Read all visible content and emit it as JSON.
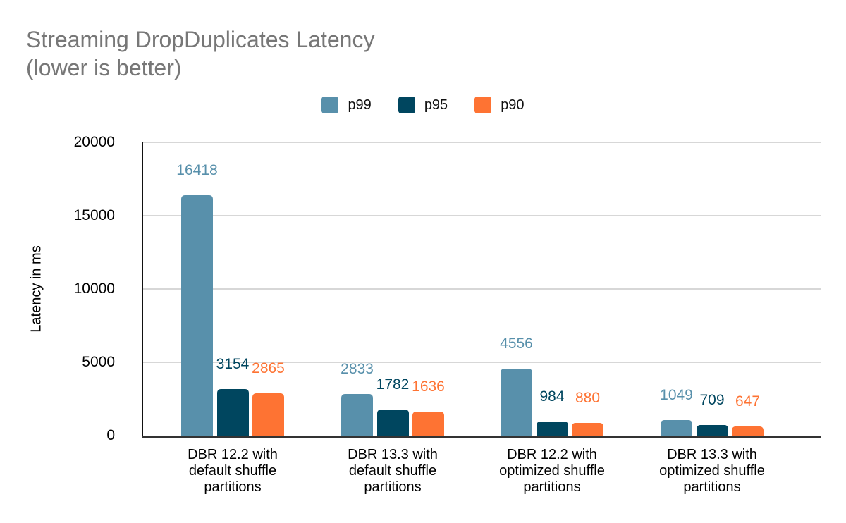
{
  "title": {
    "line1": "Streaming DropDuplicates Latency",
    "line2": "(lower is better)"
  },
  "y_axis": {
    "label": "Latency in ms",
    "ticks": [
      "20000",
      "15000",
      "10000",
      "5000",
      "0"
    ]
  },
  "chart_data": {
    "type": "bar",
    "title": "Streaming DropDuplicates Latency (lower is better)",
    "categories": [
      "DBR 12.2 with default shuffle partitions",
      "DBR 13.3 with default shuffle partitions",
      "DBR 12.2 with optimized shuffle partitions",
      "DBR 13.3 with optimized shuffle partitions"
    ],
    "series": [
      {
        "name": "p99",
        "color": "#5890ab",
        "values": [
          16418,
          2833,
          4556,
          1049
        ]
      },
      {
        "name": "p95",
        "color": "#00465f",
        "values": [
          3154,
          1782,
          984,
          709
        ]
      },
      {
        "name": "p90",
        "color": "#fe7333",
        "values": [
          2865,
          1636,
          880,
          647
        ]
      }
    ],
    "xlabel": "",
    "ylabel": "Latency in ms",
    "ylim": [
      0,
      20000
    ],
    "grid": true,
    "legend_position": "top",
    "value_labels": true
  },
  "colors": {
    "title_text": "#777777",
    "gridline": "#d7d7d7",
    "axis_line": "#333333",
    "label_text": "#000000",
    "background": "#ffffff"
  }
}
